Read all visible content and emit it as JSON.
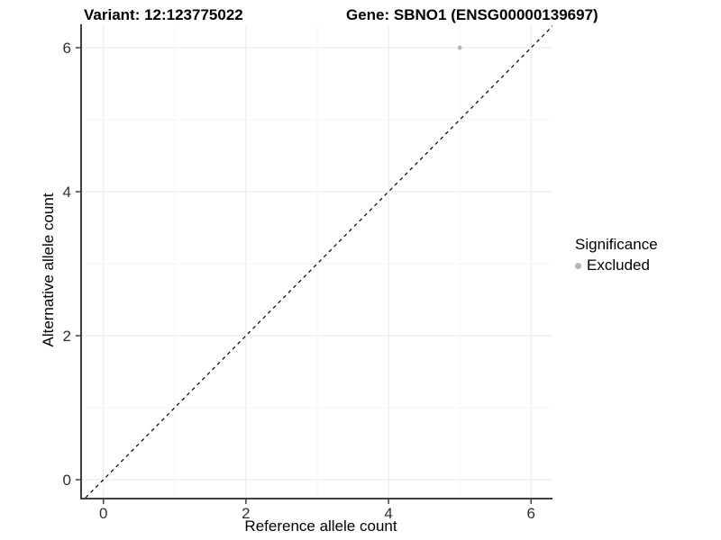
{
  "header": {
    "variant_title": "Variant: 12:123775022",
    "gene_title": "Gene: SBNO1 (ENSG00000139697)"
  },
  "chart_data": {
    "type": "scatter",
    "title": "Variant: 12:123775022   Gene: SBNO1 (ENSG00000139697)",
    "xlabel": "Reference allele count",
    "ylabel": "Alternative allele count",
    "xticks": [
      0,
      2,
      4,
      6
    ],
    "yticks": [
      0,
      2,
      4,
      6
    ],
    "xticks_minor": [
      1,
      3,
      5
    ],
    "yticks_minor": [
      1,
      3,
      5
    ],
    "xlim": [
      -0.3,
      6.3
    ],
    "ylim": [
      -0.25,
      6.3125
    ],
    "grid": true,
    "legend_position": "right",
    "identity_line": {
      "style": "dashed",
      "slope": 1,
      "intercept": 0,
      "color": "#000000"
    },
    "series": [
      {
        "name": "Excluded",
        "color": "#b5b5b5",
        "points": [
          {
            "x": 5,
            "y": 6
          }
        ]
      }
    ]
  },
  "legend": {
    "title": "Significance",
    "items": [
      {
        "label": "Excluded",
        "color": "#b5b5b5"
      }
    ]
  },
  "colors": {
    "grid_major": "#e9e9e9",
    "grid_minor": "#f5f5f5",
    "axis": "#404040",
    "tick_label": "#303030",
    "background": "#ffffff"
  }
}
